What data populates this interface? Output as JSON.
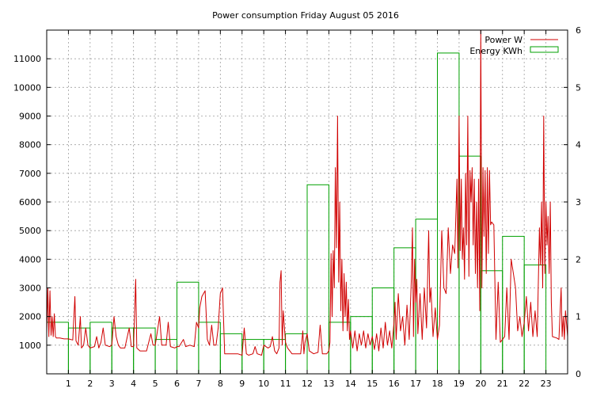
{
  "chart_data": {
    "type": "line",
    "title": "Power consumption Friday August 05 2016",
    "xlabel": "",
    "ylabel": "",
    "x_ticks": [
      "1",
      "2",
      "3",
      "4",
      "5",
      "6",
      "7",
      "8",
      "9",
      "10",
      "11",
      "12",
      "13",
      "14",
      "15",
      "16",
      "17",
      "18",
      "19",
      "20",
      "21",
      "22",
      "23"
    ],
    "xlim": [
      0,
      24
    ],
    "ylim_left": [
      0,
      12000
    ],
    "yticks_left": [
      "1000",
      "2000",
      "3000",
      "4000",
      "5000",
      "6000",
      "7000",
      "8000",
      "9000",
      "10000",
      "11000"
    ],
    "ylim_right": [
      0,
      6
    ],
    "yticks_right": [
      "0",
      "1",
      "2",
      "3",
      "4",
      "5",
      "6"
    ],
    "grid": true,
    "legend_position": "top-right",
    "series": [
      {
        "name": "Power W",
        "type": "line",
        "axis": "left",
        "color": "#d00000",
        "points": [
          [
            0.0,
            1400
          ],
          [
            0.05,
            3000
          ],
          [
            0.1,
            1300
          ],
          [
            0.15,
            2900
          ],
          [
            0.2,
            1350
          ],
          [
            0.25,
            2000
          ],
          [
            0.3,
            1300
          ],
          [
            0.35,
            2100
          ],
          [
            0.4,
            1300
          ],
          [
            0.45,
            1250
          ],
          [
            0.6,
            1250
          ],
          [
            0.8,
            1220
          ],
          [
            1.0,
            1220
          ],
          [
            1.2,
            1180
          ],
          [
            1.3,
            2700
          ],
          [
            1.35,
            1150
          ],
          [
            1.45,
            1000
          ],
          [
            1.55,
            2000
          ],
          [
            1.6,
            900
          ],
          [
            1.7,
            1000
          ],
          [
            1.8,
            1600
          ],
          [
            1.9,
            1000
          ],
          [
            2.0,
            900
          ],
          [
            2.2,
            950
          ],
          [
            2.3,
            1300
          ],
          [
            2.4,
            900
          ],
          [
            2.5,
            1100
          ],
          [
            2.6,
            1600
          ],
          [
            2.7,
            1000
          ],
          [
            2.9,
            950
          ],
          [
            3.0,
            1000
          ],
          [
            3.1,
            2000
          ],
          [
            3.2,
            1300
          ],
          [
            3.3,
            1000
          ],
          [
            3.4,
            900
          ],
          [
            3.6,
            900
          ],
          [
            3.8,
            1600
          ],
          [
            3.9,
            950
          ],
          [
            4.0,
            950
          ],
          [
            4.1,
            3300
          ],
          [
            4.15,
            900
          ],
          [
            4.3,
            800
          ],
          [
            4.6,
            800
          ],
          [
            4.8,
            1400
          ],
          [
            4.9,
            1000
          ],
          [
            5.0,
            1000
          ],
          [
            5.2,
            2000
          ],
          [
            5.3,
            1000
          ],
          [
            5.5,
            1000
          ],
          [
            5.6,
            1800
          ],
          [
            5.7,
            950
          ],
          [
            5.9,
            900
          ],
          [
            6.0,
            950
          ],
          [
            6.1,
            950
          ],
          [
            6.3,
            1200
          ],
          [
            6.4,
            950
          ],
          [
            6.6,
            1000
          ],
          [
            6.8,
            950
          ],
          [
            6.9,
            1800
          ],
          [
            7.0,
            1600
          ],
          [
            7.05,
            2300
          ],
          [
            7.15,
            2700
          ],
          [
            7.3,
            2900
          ],
          [
            7.4,
            1200
          ],
          [
            7.5,
            1000
          ],
          [
            7.6,
            1700
          ],
          [
            7.7,
            1000
          ],
          [
            7.8,
            1000
          ],
          [
            7.9,
            1600
          ],
          [
            8.0,
            2800
          ],
          [
            8.1,
            3000
          ],
          [
            8.2,
            700
          ],
          [
            8.4,
            700
          ],
          [
            8.6,
            700
          ],
          [
            8.8,
            700
          ],
          [
            9.0,
            650
          ],
          [
            9.1,
            1600
          ],
          [
            9.2,
            700
          ],
          [
            9.3,
            650
          ],
          [
            9.5,
            700
          ],
          [
            9.6,
            950
          ],
          [
            9.7,
            700
          ],
          [
            9.9,
            650
          ],
          [
            10.0,
            1000
          ],
          [
            10.2,
            900
          ],
          [
            10.3,
            950
          ],
          [
            10.4,
            1300
          ],
          [
            10.5,
            800
          ],
          [
            10.6,
            700
          ],
          [
            10.7,
            900
          ],
          [
            10.75,
            3200
          ],
          [
            10.8,
            3600
          ],
          [
            10.85,
            1000
          ],
          [
            10.9,
            2200
          ],
          [
            11.0,
            1100
          ],
          [
            11.1,
            900
          ],
          [
            11.2,
            800
          ],
          [
            11.3,
            700
          ],
          [
            11.5,
            700
          ],
          [
            11.7,
            700
          ],
          [
            11.8,
            1500
          ],
          [
            11.85,
            700
          ],
          [
            11.9,
            1100
          ],
          [
            12.0,
            1400
          ],
          [
            12.1,
            800
          ],
          [
            12.3,
            700
          ],
          [
            12.5,
            750
          ],
          [
            12.6,
            1700
          ],
          [
            12.7,
            700
          ],
          [
            12.9,
            700
          ],
          [
            13.0,
            800
          ],
          [
            13.05,
            1100
          ],
          [
            13.1,
            4200
          ],
          [
            13.15,
            2000
          ],
          [
            13.2,
            4300
          ],
          [
            13.25,
            3000
          ],
          [
            13.3,
            7200
          ],
          [
            13.35,
            4400
          ],
          [
            13.4,
            9000
          ],
          [
            13.45,
            3200
          ],
          [
            13.5,
            6000
          ],
          [
            13.55,
            2200
          ],
          [
            13.6,
            4000
          ],
          [
            13.65,
            1500
          ],
          [
            13.7,
            3500
          ],
          [
            13.75,
            2000
          ],
          [
            13.8,
            3200
          ],
          [
            13.85,
            1500
          ],
          [
            13.9,
            2600
          ],
          [
            13.95,
            1200
          ],
          [
            14.0,
            1500
          ],
          [
            14.1,
            900
          ],
          [
            14.2,
            1500
          ],
          [
            14.3,
            800
          ],
          [
            14.4,
            1400
          ],
          [
            14.5,
            1000
          ],
          [
            14.6,
            1500
          ],
          [
            14.7,
            900
          ],
          [
            14.8,
            1400
          ],
          [
            14.9,
            1000
          ],
          [
            15.0,
            1300
          ],
          [
            15.1,
            850
          ],
          [
            15.2,
            1400
          ],
          [
            15.3,
            800
          ],
          [
            15.4,
            1600
          ],
          [
            15.5,
            900
          ],
          [
            15.6,
            1800
          ],
          [
            15.7,
            1000
          ],
          [
            15.8,
            1500
          ],
          [
            15.9,
            900
          ],
          [
            16.0,
            1800
          ],
          [
            16.05,
            2500
          ],
          [
            16.1,
            1200
          ],
          [
            16.2,
            2800
          ],
          [
            16.3,
            1500
          ],
          [
            16.4,
            2000
          ],
          [
            16.5,
            1000
          ],
          [
            16.6,
            2400
          ],
          [
            16.7,
            1200
          ],
          [
            16.8,
            3300
          ],
          [
            16.85,
            5100
          ],
          [
            16.9,
            1300
          ],
          [
            16.95,
            4000
          ],
          [
            17.0,
            2500
          ],
          [
            17.05,
            3300
          ],
          [
            17.1,
            1400
          ],
          [
            17.2,
            2800
          ],
          [
            17.3,
            1200
          ],
          [
            17.4,
            3000
          ],
          [
            17.5,
            1600
          ],
          [
            17.6,
            5000
          ],
          [
            17.65,
            2500
          ],
          [
            17.7,
            3000
          ],
          [
            17.8,
            1300
          ],
          [
            17.9,
            2300
          ],
          [
            18.0,
            1200
          ],
          [
            18.1,
            1700
          ],
          [
            18.2,
            5000
          ],
          [
            18.25,
            4000
          ],
          [
            18.3,
            3000
          ],
          [
            18.4,
            2800
          ],
          [
            18.5,
            5100
          ],
          [
            18.6,
            3500
          ],
          [
            18.7,
            4500
          ],
          [
            18.8,
            4200
          ],
          [
            18.9,
            6800
          ],
          [
            18.95,
            3700
          ],
          [
            19.0,
            9000
          ],
          [
            19.05,
            4300
          ],
          [
            19.1,
            6800
          ],
          [
            19.15,
            4000
          ],
          [
            19.2,
            5100
          ],
          [
            19.25,
            3300
          ],
          [
            19.3,
            7000
          ],
          [
            19.35,
            4500
          ],
          [
            19.4,
            9000
          ],
          [
            19.45,
            3400
          ],
          [
            19.5,
            7100
          ],
          [
            19.55,
            6000
          ],
          [
            19.6,
            7200
          ],
          [
            19.65,
            4500
          ],
          [
            19.7,
            6800
          ],
          [
            19.75,
            3500
          ],
          [
            19.8,
            6000
          ],
          [
            19.85,
            3000
          ],
          [
            19.9,
            6800
          ],
          [
            19.95,
            2200
          ],
          [
            20.0,
            12000
          ],
          [
            20.05,
            3000
          ],
          [
            20.1,
            7200
          ],
          [
            20.15,
            4800
          ],
          [
            20.2,
            7100
          ],
          [
            20.25,
            3500
          ],
          [
            20.3,
            7200
          ],
          [
            20.35,
            4200
          ],
          [
            20.4,
            7100
          ],
          [
            20.45,
            5200
          ],
          [
            20.5,
            5300
          ],
          [
            20.6,
            5200
          ],
          [
            20.7,
            1200
          ],
          [
            20.8,
            3200
          ],
          [
            20.9,
            1100
          ],
          [
            21.0,
            1200
          ],
          [
            21.1,
            1300
          ],
          [
            21.2,
            3000
          ],
          [
            21.3,
            1200
          ],
          [
            21.4,
            4000
          ],
          [
            21.5,
            3500
          ],
          [
            21.6,
            3000
          ],
          [
            21.7,
            1500
          ],
          [
            21.8,
            2000
          ],
          [
            21.9,
            1300
          ],
          [
            22.0,
            1800
          ],
          [
            22.1,
            2700
          ],
          [
            22.2,
            1500
          ],
          [
            22.3,
            2500
          ],
          [
            22.4,
            1300
          ],
          [
            22.5,
            2200
          ],
          [
            22.6,
            1300
          ],
          [
            22.7,
            5100
          ],
          [
            22.75,
            3800
          ],
          [
            22.8,
            6000
          ],
          [
            22.85,
            3000
          ],
          [
            22.9,
            9000
          ],
          [
            22.95,
            3500
          ],
          [
            23.0,
            6000
          ],
          [
            23.05,
            4500
          ],
          [
            23.1,
            5500
          ],
          [
            23.15,
            3500
          ],
          [
            23.2,
            6000
          ],
          [
            23.25,
            2500
          ],
          [
            23.3,
            1300
          ],
          [
            23.5,
            1250
          ],
          [
            23.6,
            1200
          ],
          [
            23.7,
            3000
          ],
          [
            23.75,
            1300
          ],
          [
            23.8,
            2000
          ],
          [
            23.85,
            1200
          ],
          [
            23.9,
            2200
          ],
          [
            24.0,
            1300
          ]
        ]
      },
      {
        "name": "Energy KWh",
        "type": "step-bar",
        "axis": "right",
        "color": "#00a000",
        "bars": [
          [
            0.5,
            0.9
          ],
          [
            1.5,
            0.8
          ],
          [
            2.5,
            0.9
          ],
          [
            3.5,
            0.8
          ],
          [
            4.5,
            0.8
          ],
          [
            5.5,
            0.6
          ],
          [
            6.5,
            1.6
          ],
          [
            7.5,
            0.9
          ],
          [
            8.5,
            0.7
          ],
          [
            9.5,
            0.6
          ],
          [
            10.5,
            0.6
          ],
          [
            11.5,
            0.7
          ],
          [
            12.5,
            3.3
          ],
          [
            13.5,
            0.9
          ],
          [
            14.5,
            1.0
          ],
          [
            15.5,
            1.5
          ],
          [
            16.5,
            2.2
          ],
          [
            17.5,
            2.7
          ],
          [
            18.5,
            5.6
          ],
          [
            19.5,
            3.8
          ],
          [
            20.5,
            1.8
          ],
          [
            21.5,
            2.4
          ],
          [
            22.5,
            1.9
          ]
        ]
      }
    ]
  }
}
